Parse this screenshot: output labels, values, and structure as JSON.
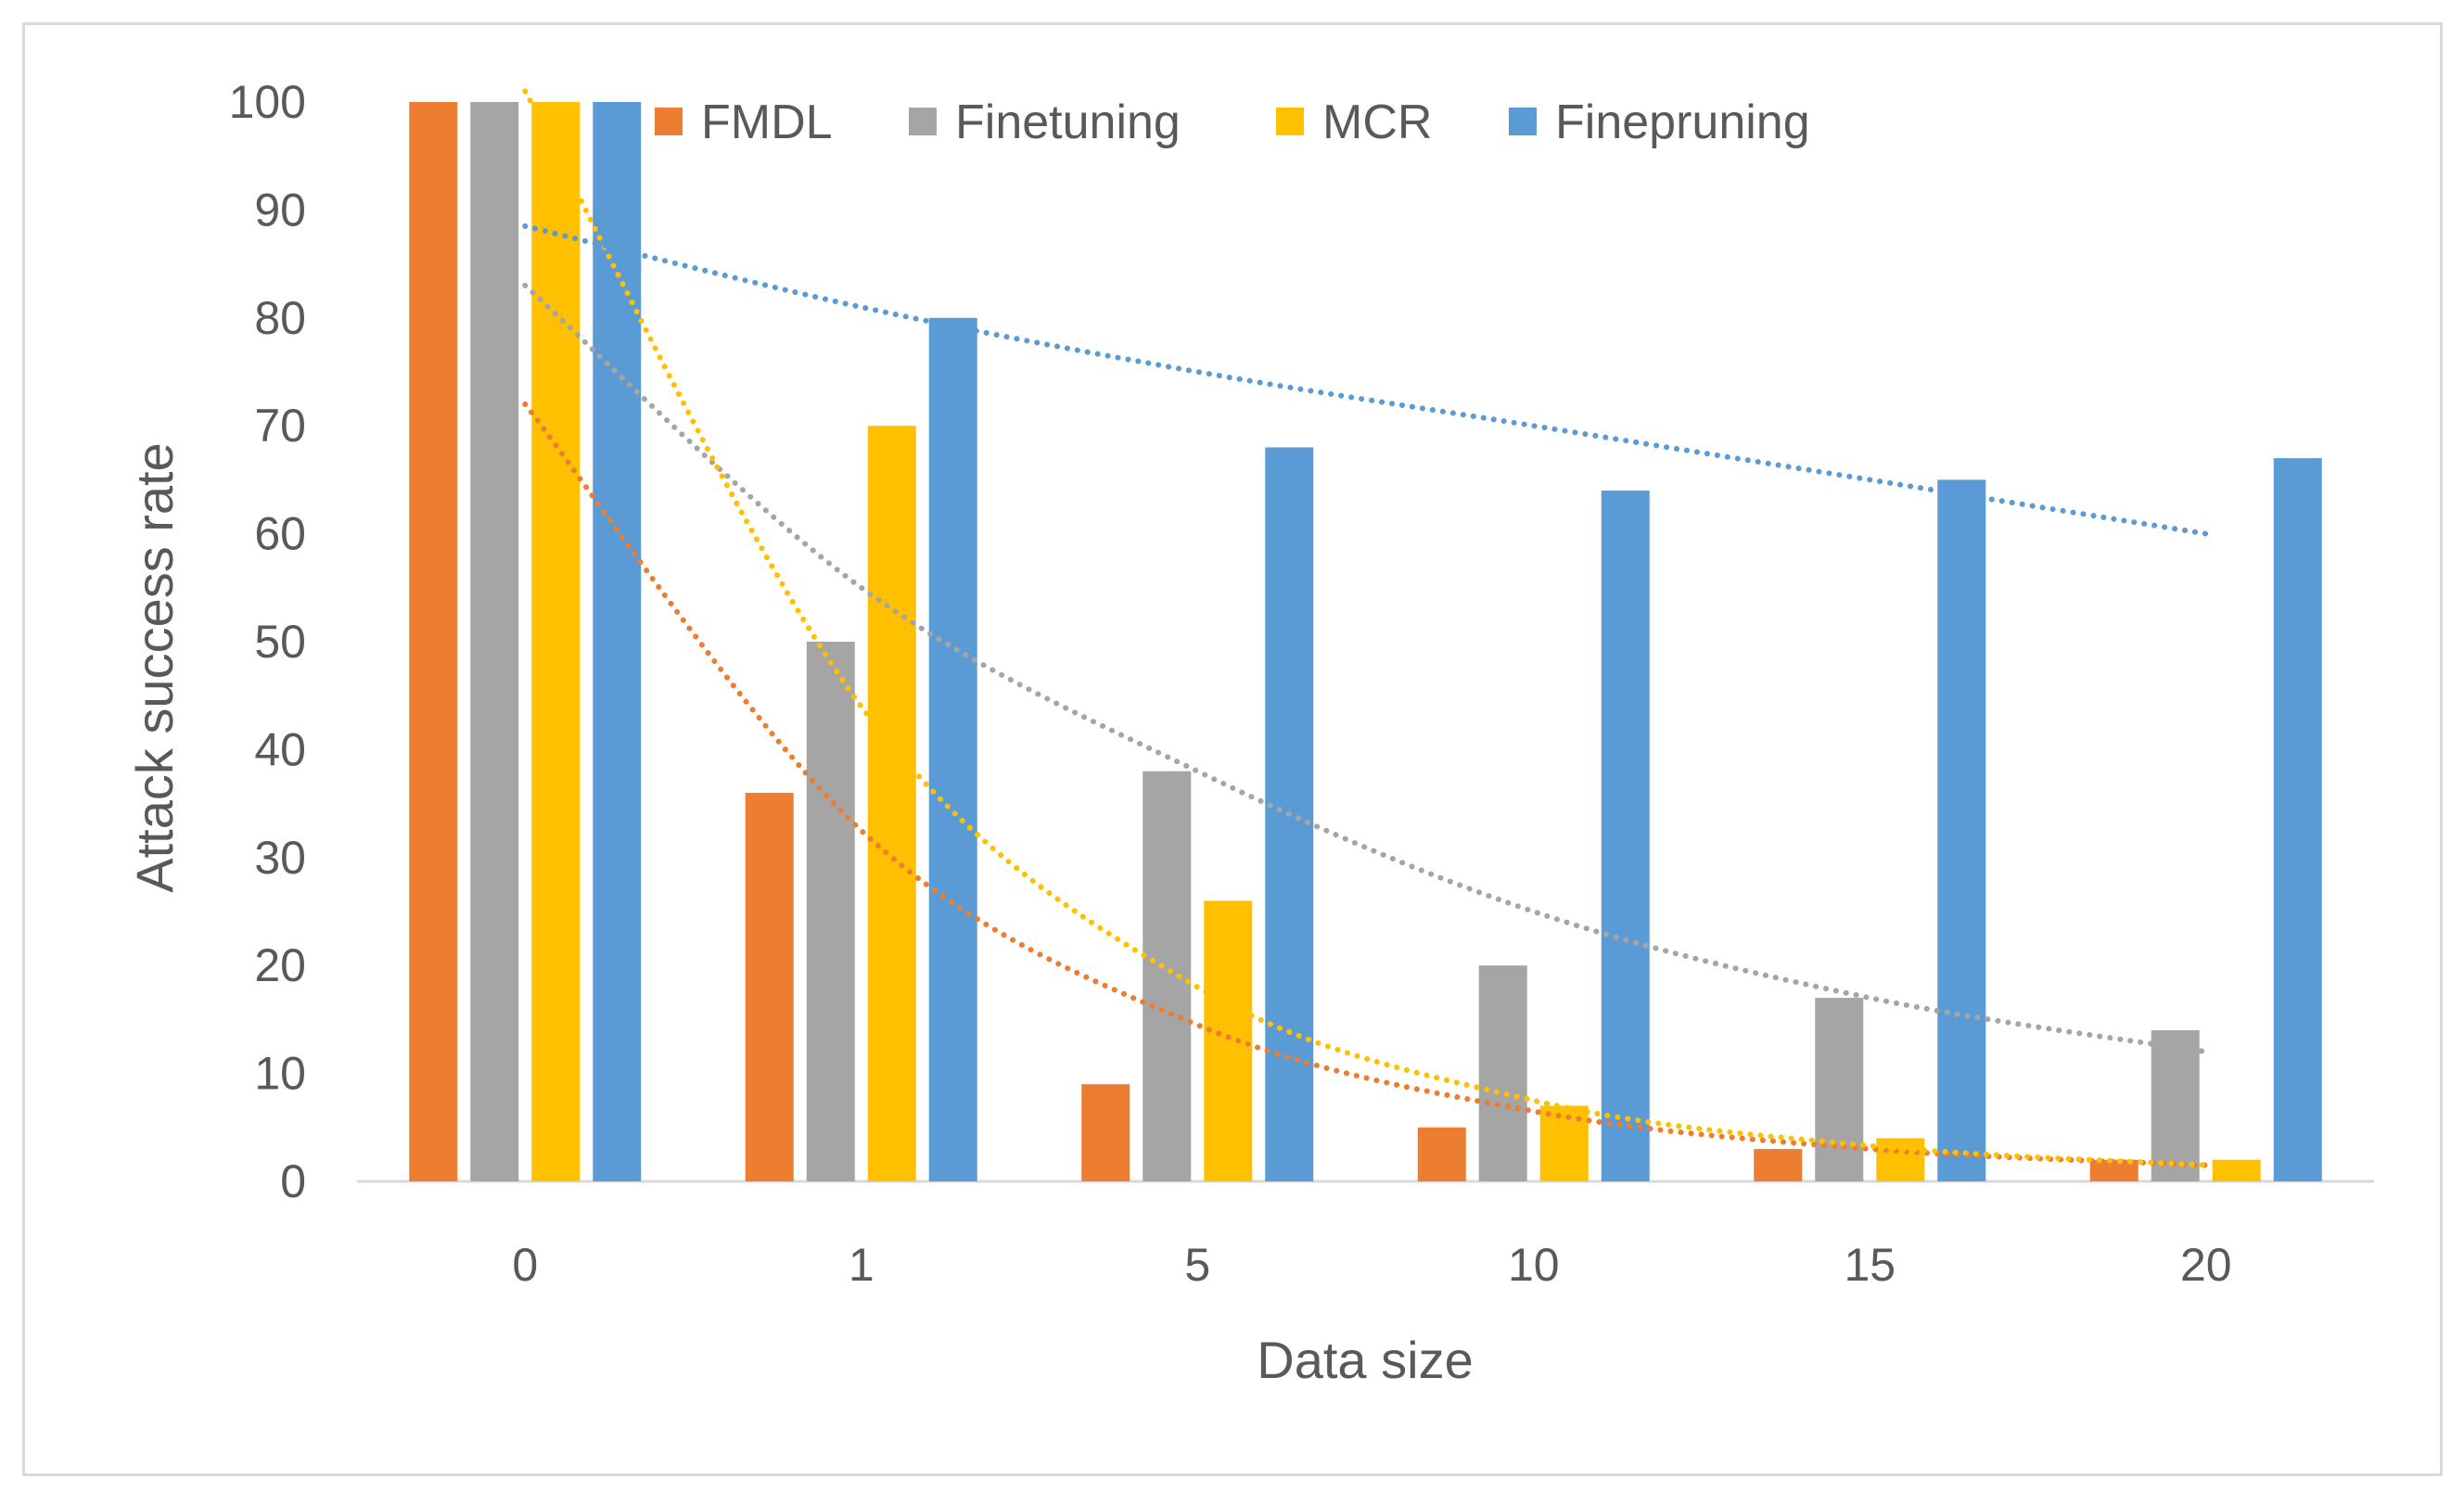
{
  "chart_data": {
    "type": "bar",
    "title": "",
    "xlabel": "Data size",
    "ylabel": "Attack success rate",
    "categories": [
      "0",
      "1",
      "5",
      "10",
      "15",
      "20"
    ],
    "ylim": [
      0,
      100
    ],
    "yticks": [
      "0",
      "10",
      "20",
      "30",
      "40",
      "50",
      "60",
      "70",
      "80",
      "90",
      "100"
    ],
    "grid": false,
    "legend_position": "top",
    "series": [
      {
        "name": "FMDL",
        "color": "#ED7D31",
        "values": [
          100,
          36,
          9,
          5,
          3,
          2
        ]
      },
      {
        "name": "Finetuning",
        "color": "#A5A5A5",
        "values": [
          100,
          50,
          38,
          20,
          17,
          14
        ]
      },
      {
        "name": "MCR",
        "color": "#FFC000",
        "values": [
          100,
          70,
          26,
          7,
          4,
          2
        ]
      },
      {
        "name": "Finepruning",
        "color": "#5B9BD5",
        "values": [
          100,
          80,
          68,
          64,
          65,
          67
        ]
      }
    ],
    "trendlines": [
      {
        "series": "FMDL",
        "type": "exponential",
        "color": "#ED7D31",
        "values": [
          72,
          32.5,
          14.5,
          6.5,
          3,
          1.5
        ]
      },
      {
        "series": "Finetuning",
        "type": "exponential",
        "color": "#A5A5A5",
        "values": [
          83,
          55,
          38,
          25,
          17,
          12
        ]
      },
      {
        "series": "MCR",
        "type": "exponential",
        "color": "#FFC000",
        "values": [
          101,
          44,
          18,
          7.5,
          3.3,
          1.5
        ]
      },
      {
        "series": "Finepruning",
        "type": "exponential",
        "color": "#5B9BD5",
        "values": [
          88.5,
          81,
          75,
          70,
          65,
          60
        ]
      }
    ]
  }
}
